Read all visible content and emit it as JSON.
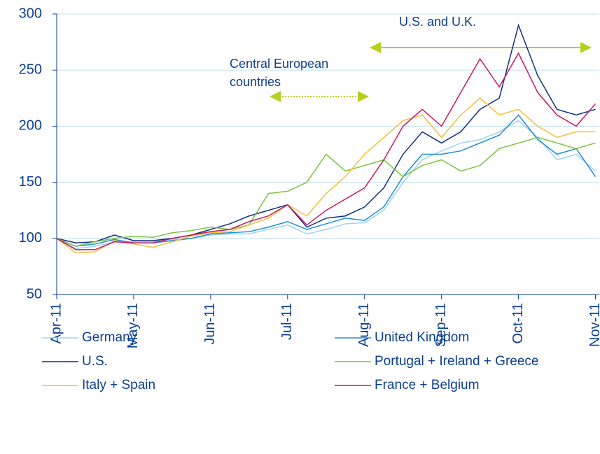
{
  "chart_data": {
    "type": "line",
    "annotations": [
      {
        "text": [
          "U.S. and U.K."
        ]
      },
      {
        "text": [
          "Central European",
          "countries"
        ]
      }
    ],
    "x": [
      0,
      0.25,
      0.5,
      0.75,
      1,
      1.25,
      1.5,
      1.75,
      2,
      2.25,
      2.5,
      2.75,
      3,
      3.25,
      3.5,
      3.75,
      4,
      4.25,
      4.5,
      4.75,
      5,
      5.25,
      5.5,
      5.75,
      6,
      6.25,
      6.5,
      6.75,
      7
    ],
    "xlim": [
      0,
      7.05
    ],
    "xticks": [
      {
        "value": 0,
        "label": "Apr-11"
      },
      {
        "value": 1,
        "label": "May-11"
      },
      {
        "value": 2,
        "label": "Jun-11"
      },
      {
        "value": 3,
        "label": "Jul-11"
      },
      {
        "value": 4,
        "label": "Aug-11"
      },
      {
        "value": 5,
        "label": "Sep-11"
      },
      {
        "value": 6,
        "label": "Oct-11"
      },
      {
        "value": 7,
        "label": "Nov-11"
      }
    ],
    "ylim": [
      50,
      300
    ],
    "yticks": [
      50,
      100,
      150,
      200,
      250,
      300
    ],
    "grid": true,
    "series": [
      {
        "name": "Germany",
        "color": "#9fd3f0",
        "values": [
          100,
          91,
          93,
          97,
          97,
          97,
          99,
          100,
          103,
          104,
          104,
          108,
          112,
          104,
          108,
          113,
          114,
          125,
          150,
          170,
          178,
          185,
          188,
          195,
          205,
          190,
          170,
          175,
          160
        ]
      },
      {
        "name": "United Kingdom",
        "color": "#1f8dd6",
        "values": [
          100,
          93,
          95,
          99,
          96,
          96,
          98,
          100,
          104,
          105,
          106,
          110,
          115,
          108,
          113,
          118,
          116,
          128,
          155,
          175,
          175,
          178,
          185,
          192,
          210,
          188,
          175,
          180,
          155
        ]
      },
      {
        "name": "U.S.",
        "color": "#0f2f7a",
        "values": [
          100,
          96,
          97,
          103,
          98,
          98,
          100,
          103,
          108,
          113,
          120,
          125,
          130,
          110,
          118,
          120,
          128,
          145,
          175,
          195,
          185,
          195,
          215,
          225,
          290,
          245,
          215,
          210,
          215
        ]
      },
      {
        "name": "Portugal + Ireland + Greece",
        "color": "#7dc242",
        "values": [
          100,
          93,
          97,
          100,
          102,
          101,
          105,
          107,
          110,
          108,
          112,
          140,
          142,
          150,
          175,
          160,
          165,
          170,
          155,
          165,
          170,
          160,
          165,
          180,
          185,
          190,
          185,
          180,
          185
        ]
      },
      {
        "name": "Italy + Spain",
        "color": "#f7be3a",
        "values": [
          100,
          87,
          88,
          98,
          95,
          92,
          97,
          102,
          105,
          106,
          112,
          118,
          130,
          120,
          140,
          155,
          175,
          190,
          205,
          210,
          190,
          210,
          225,
          210,
          215,
          200,
          190,
          195,
          195
        ]
      },
      {
        "name": "France + Belgium",
        "color": "#c8175f",
        "values": [
          100,
          90,
          90,
          97,
          96,
          96,
          100,
          103,
          106,
          108,
          115,
          120,
          130,
          112,
          125,
          135,
          145,
          170,
          200,
          215,
          200,
          230,
          260,
          235,
          265,
          230,
          210,
          200,
          220
        ]
      }
    ]
  }
}
